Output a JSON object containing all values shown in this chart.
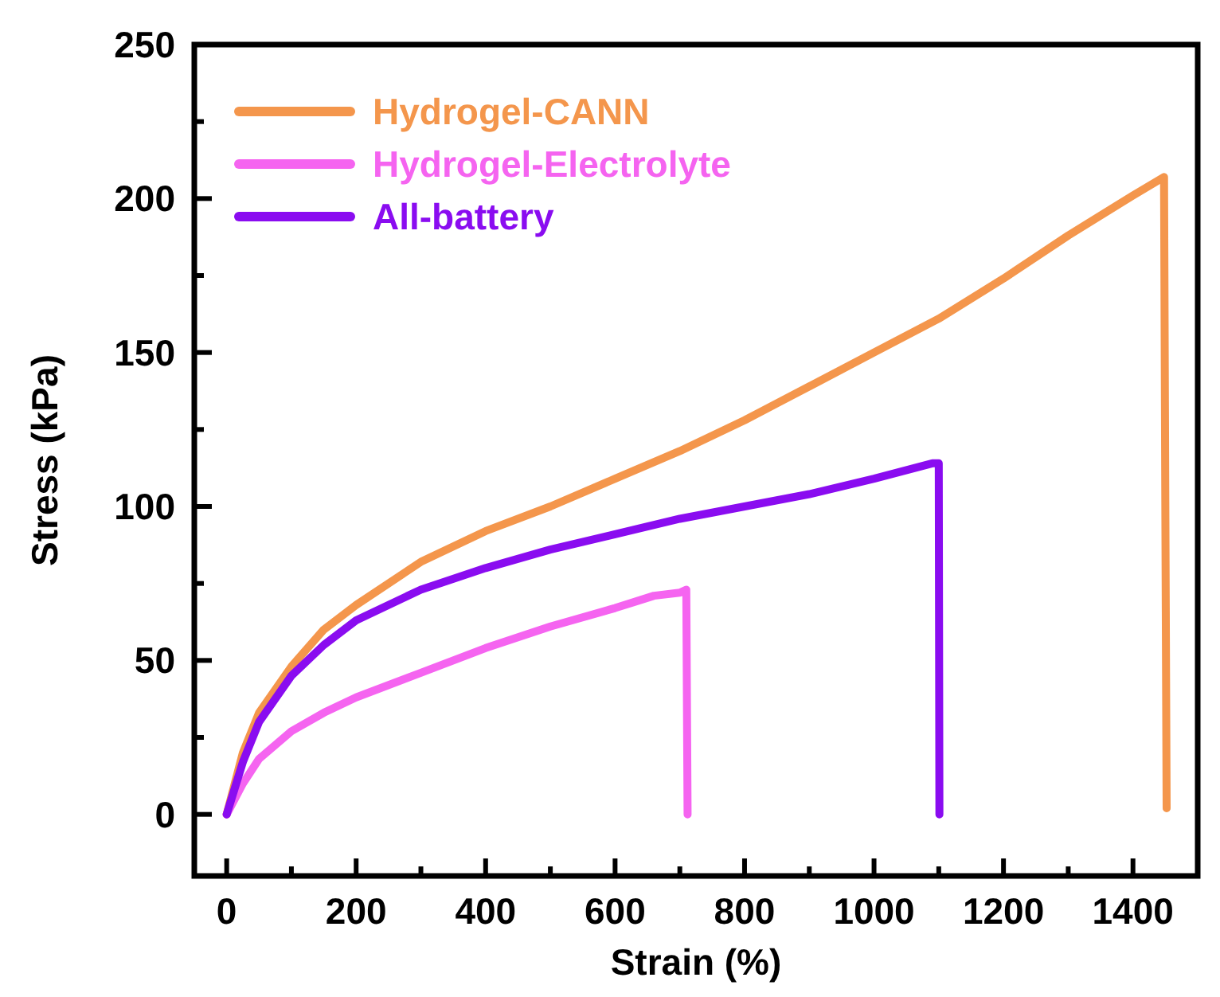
{
  "chart_data": {
    "type": "line",
    "xlabel": "Strain (%)",
    "ylabel": "Stress (kPa)",
    "xlim": [
      -50,
      1500
    ],
    "ylim": [
      -20,
      250
    ],
    "xticks": [
      0,
      {
        "value": 100,
        "label": null
      },
      200,
      {
        "value": 300,
        "label": null
      },
      400,
      {
        "value": 500,
        "label": null
      },
      600,
      {
        "value": 700,
        "label": null
      },
      800,
      {
        "value": 900,
        "label": null
      },
      1000,
      {
        "value": 1100,
        "label": null
      },
      1200,
      {
        "value": 1300,
        "label": null
      },
      1400
    ],
    "yticks": [
      0,
      {
        "value": 25,
        "label": null
      },
      50,
      {
        "value": 75,
        "label": null
      },
      100,
      {
        "value": 125,
        "label": null
      },
      150,
      {
        "value": 175,
        "label": null
      },
      200,
      {
        "value": 225,
        "label": null
      },
      250
    ],
    "legend": "top left",
    "grid": false,
    "marker": "none",
    "line_style": "solid",
    "series": [
      {
        "name": "Hydrogel-CANN",
        "color": "#f4964c",
        "x": [
          0,
          25,
          50,
          100,
          150,
          200,
          300,
          400,
          500,
          600,
          700,
          800,
          900,
          1000,
          1100,
          1200,
          1300,
          1400,
          1448,
          1450,
          1452
        ],
        "values": [
          0,
          20,
          33,
          48,
          60,
          68,
          82,
          92,
          100,
          109,
          118,
          128,
          139,
          150,
          161,
          174,
          188,
          201,
          207,
          100,
          2
        ]
      },
      {
        "name": "Hydrogel-Electrolyte",
        "color": "#f564f0",
        "x": [
          0,
          25,
          50,
          100,
          150,
          200,
          300,
          400,
          500,
          600,
          660,
          700,
          710,
          712
        ],
        "values": [
          0,
          10,
          18,
          27,
          33,
          38,
          46,
          54,
          61,
          67,
          71,
          72,
          73,
          0
        ]
      },
      {
        "name": "All-battery",
        "color": "#8a0cf0",
        "x": [
          0,
          25,
          50,
          100,
          150,
          200,
          300,
          400,
          500,
          600,
          700,
          800,
          900,
          1000,
          1090,
          1100,
          1101
        ],
        "values": [
          0,
          17,
          30,
          45,
          55,
          63,
          73,
          80,
          86,
          91,
          96,
          100,
          104,
          109,
          114,
          114,
          0
        ]
      }
    ]
  }
}
